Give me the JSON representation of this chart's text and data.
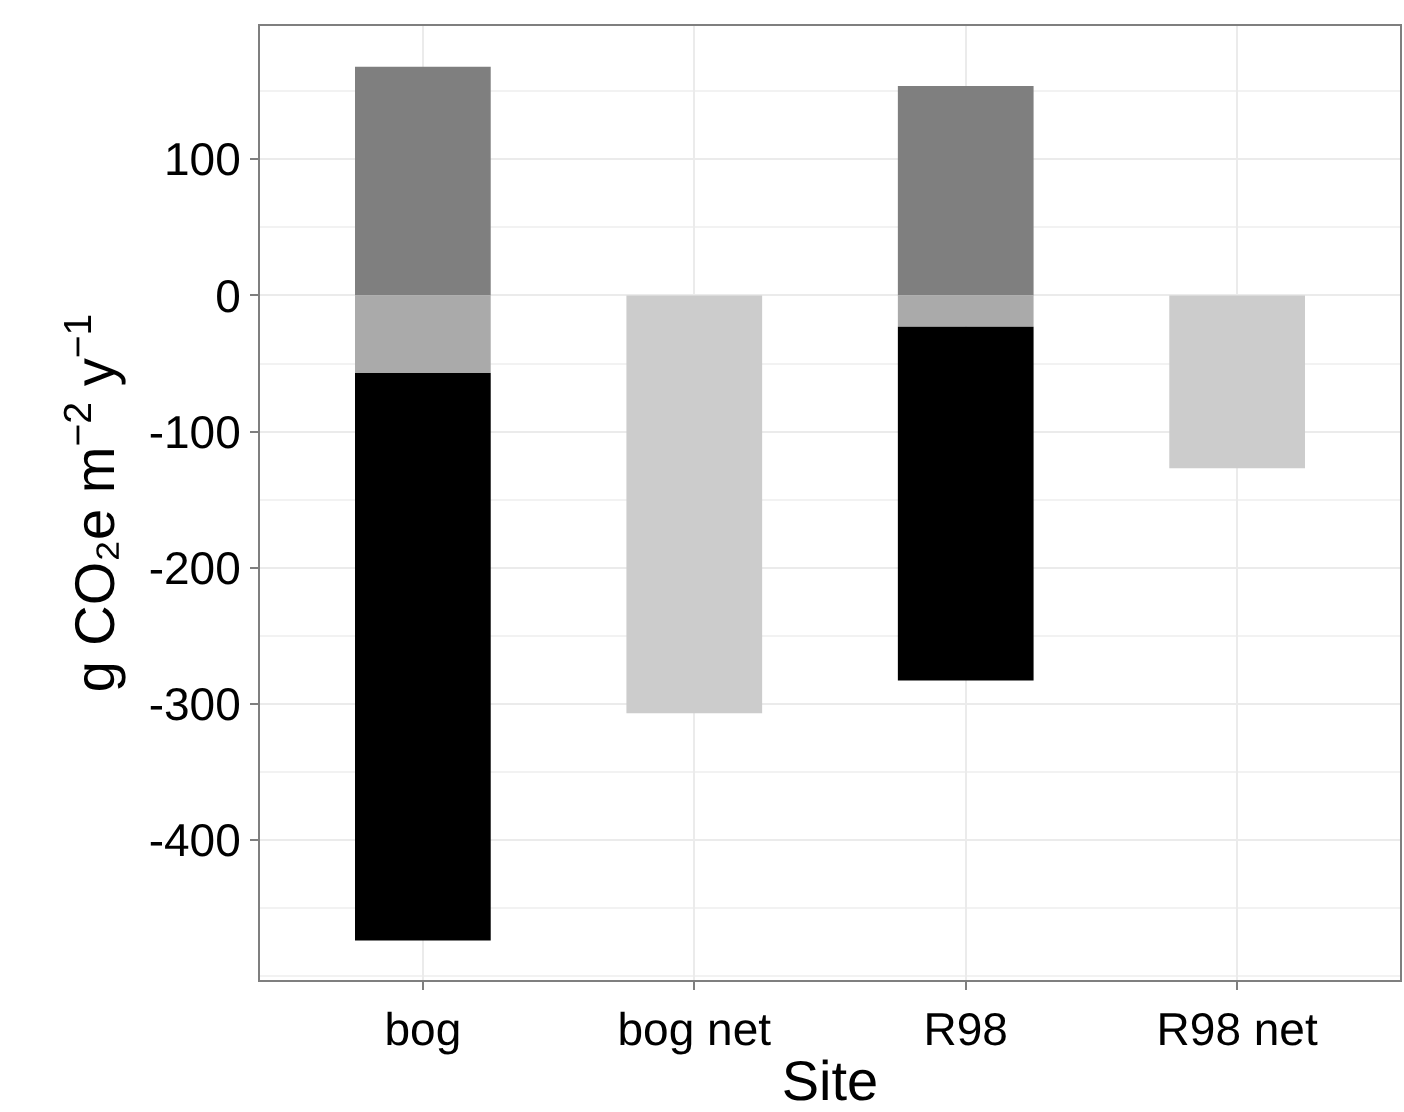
{
  "chart_data": {
    "type": "bar",
    "stacked": true,
    "xlabel": "Site",
    "ylabel": "g CO₂e m$^{−2}$ y$^{−1}$",
    "categories": [
      "bog",
      "bog net",
      "R98",
      "R98 net"
    ],
    "series": [
      {
        "color": "#7f7f7f",
        "values": [
          168,
          null,
          154,
          null
        ]
      },
      {
        "color": "#aaaaaa",
        "values": [
          -57,
          null,
          -23,
          null
        ]
      },
      {
        "color": "#000000",
        "values": [
          -417,
          null,
          -260,
          null
        ]
      },
      {
        "color": "#cccccc",
        "values": [
          null,
          -307,
          null,
          -127
        ]
      }
    ],
    "ylim": [
      -503,
      198
    ],
    "yticks": [
      100,
      0,
      -100,
      -200,
      -300,
      -400
    ],
    "grid": true
  }
}
